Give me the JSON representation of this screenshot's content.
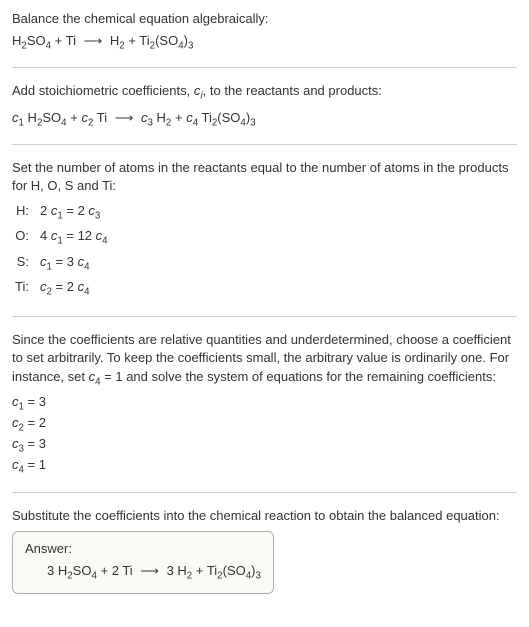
{
  "section1": {
    "title_a": "Balance the chemical equation algebraically:",
    "eq_pre": "H",
    "eq": {
      "h2so4": {
        "h": "H",
        "two_a": "2",
        "so": "SO",
        "four": "4"
      },
      "plus1": " + Ti ",
      "arrow": "⟶",
      "sp": " ",
      "h2": {
        "h": "H",
        "two": "2"
      },
      "plus2": " + Ti",
      "ti2so4": {
        "two": "2",
        "open": "(SO",
        "four": "4",
        "close": ")",
        "three": "3"
      }
    }
  },
  "section2": {
    "title_a": "Add stoichiometric coefficients, ",
    "ci_c": "c",
    "ci_i": "i",
    "title_b": ", to the reactants and products:",
    "c1": "c",
    "one": "1",
    "sp1": " H",
    "h2": "2",
    "so": "SO",
    "four": "4",
    "plus": " + ",
    "c2": "c",
    "two": "2",
    "ti": " Ti ",
    "arrow": "⟶",
    "sp": " ",
    "c3": "c",
    "three": "3",
    "h2b": " H",
    "h2s": "2",
    "plus2": " + ",
    "c4": "c",
    "fourc": "4",
    "tib": " Ti",
    "ti2": "2",
    "open": "(SO",
    "so4": "4",
    "close": ")",
    "tr": "3"
  },
  "section3": {
    "title_a": "Set the number of atoms in the reactants equal to the number of atoms in the products for H, O, S and Ti:",
    "rows": [
      {
        "el": "H:",
        "c_a": "2 ",
        "v_a": "c",
        "s_a": "1",
        "mid": " = 2 ",
        "v_b": "c",
        "s_b": "3"
      },
      {
        "el": "O:",
        "c_a": "4 ",
        "v_a": "c",
        "s_a": "1",
        "mid": " = 12 ",
        "v_b": "c",
        "s_b": "4"
      },
      {
        "el": "S:",
        "c_a": "",
        "v_a": "c",
        "s_a": "1",
        "mid": " = 3 ",
        "v_b": "c",
        "s_b": "4"
      },
      {
        "el": "Ti:",
        "c_a": "",
        "v_a": "c",
        "s_a": "2",
        "mid": " = 2 ",
        "v_b": "c",
        "s_b": "4"
      }
    ]
  },
  "section4": {
    "text_a": "Since the coefficients are relative quantities and underdetermined, choose a coefficient to set arbitrarily. To keep the coefficients small, the arbitrary value is ordinarily one. For instance, set ",
    "c": "c",
    "four": "4",
    "text_b": " = 1 and solve the system of equations for the remaining coefficients:",
    "lines": [
      {
        "v": "c",
        "s": "1",
        "rest": " = 3"
      },
      {
        "v": "c",
        "s": "2",
        "rest": " = 2"
      },
      {
        "v": "c",
        "s": "3",
        "rest": " = 3"
      },
      {
        "v": "c",
        "s": "4",
        "rest": " = 1"
      }
    ]
  },
  "section5": {
    "text": "Substitute the coefficients into the chemical reaction to obtain the balanced equation:"
  },
  "answer": {
    "label": "Answer:",
    "three_a": "3 H",
    "h2": "2",
    "so": "SO",
    "four": "4",
    "plus": " + 2 Ti ",
    "arrow": "⟶",
    "sp": " ",
    "three_b": "3 H",
    "h2b": "2",
    "plus2": " + Ti",
    "ti2": "2",
    "open": "(SO",
    "so4": "4",
    "close": ")",
    "tr": "3"
  },
  "colors": {
    "text": "#333333",
    "rule": "#cfcfcf",
    "box_border": "#b0b0b0",
    "box_bg": "#fafaf5"
  }
}
